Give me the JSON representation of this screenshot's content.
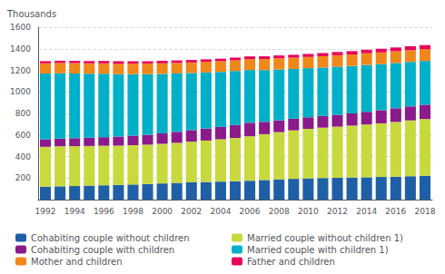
{
  "chart_data": {
    "type": "bar",
    "stacked": true,
    "grid": true,
    "y_label": "Thousands",
    "categories": [
      "1992",
      null,
      "1994",
      null,
      "1996",
      null,
      "1998",
      null,
      "2000",
      null,
      "2002",
      null,
      "2004",
      null,
      "2006",
      null,
      "2008",
      null,
      "2010",
      null,
      "2012",
      null,
      "2014",
      null,
      "2016",
      null,
      "2018"
    ],
    "series": [
      {
        "name": "Cohabiting couple without children",
        "color": "#1f5fa6",
        "values": [
          120,
          123,
          126,
          130,
          133,
          136,
          140,
          145,
          150,
          155,
          160,
          163,
          167,
          170,
          175,
          182,
          188,
          193,
          197,
          200,
          202,
          205,
          207,
          210,
          213,
          217,
          221
        ]
      },
      {
        "name": "Married couple without children 1)",
        "color": "#c8d93e",
        "values": [
          370,
          372,
          370,
          368,
          367,
          365,
          365,
          365,
          368,
          372,
          378,
          385,
          393,
          402,
          413,
          425,
          438,
          450,
          460,
          468,
          475,
          482,
          490,
          498,
          508,
          518,
          527
        ]
      },
      {
        "name": "Cohabiting couple with children",
        "color": "#8b1a8b",
        "values": [
          70,
          72,
          74,
          77,
          80,
          84,
          88,
          92,
          97,
          102,
          107,
          112,
          115,
          120,
          125,
          115,
          110,
          108,
          107,
          108,
          110,
          113,
          118,
          122,
          127,
          130,
          133
        ]
      },
      {
        "name": "Married couple with children 1)",
        "color": "#00b0c8",
        "values": [
          610,
          605,
          600,
          593,
          588,
          580,
          572,
          562,
          552,
          542,
          530,
          520,
          510,
          502,
          490,
          480,
          472,
          462,
          456,
          450,
          447,
          440,
          435,
          428,
          420,
          413,
          406
        ]
      },
      {
        "name": "Mother and children",
        "color": "#f0871a",
        "values": [
          95,
          96,
          97,
          97,
          97,
          97,
          97,
          98,
          98,
          98,
          98,
          99,
          99,
          100,
          101,
          103,
          104,
          104,
          104,
          105,
          106,
          107,
          108,
          108,
          109,
          109,
          109
        ]
      },
      {
        "name": "Father and children",
        "color": "#e8005a",
        "values": [
          20,
          21,
          21,
          21,
          22,
          22,
          22,
          22,
          23,
          23,
          23,
          23,
          24,
          24,
          25,
          25,
          26,
          27,
          28,
          29,
          30,
          31,
          33,
          34,
          35,
          36,
          38
        ]
      }
    ],
    "ylim": [
      0,
      1600
    ],
    "yticks": [
      200,
      400,
      600,
      800,
      1000,
      1200,
      1400,
      1600
    ]
  }
}
